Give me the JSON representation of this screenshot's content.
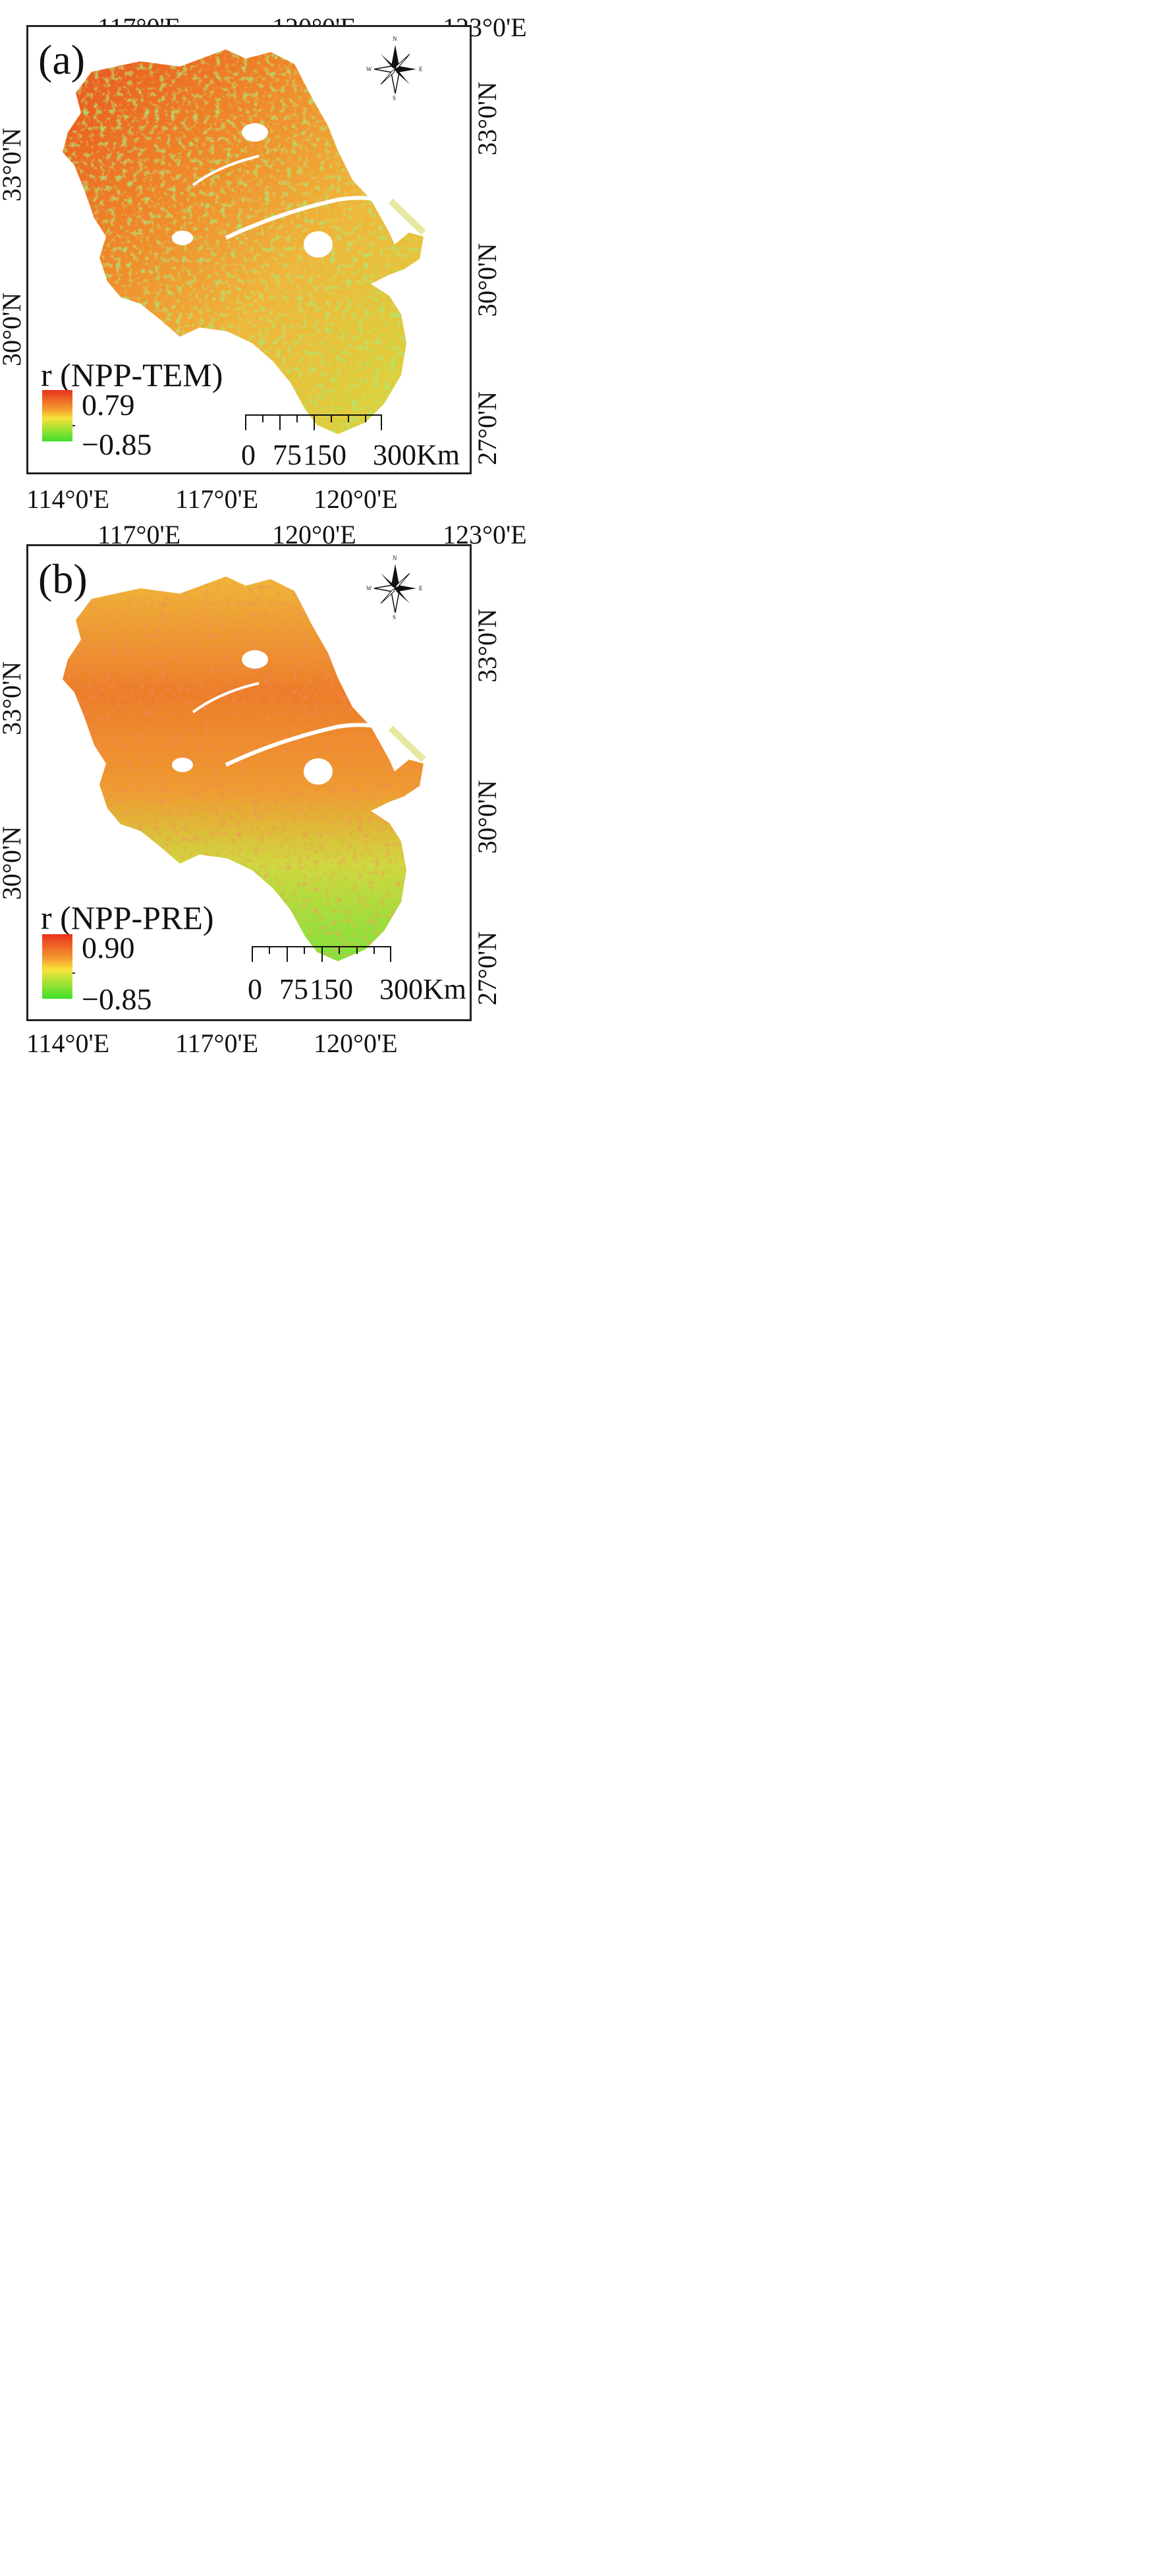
{
  "maps": [
    {
      "panel_label": "(a)",
      "legend_title": "r (NPP-TEM)",
      "legend_max": "0.79",
      "legend_min": "−0.85",
      "top_ticks": [
        "117°0'E",
        "120°0'E",
        "123°0'E"
      ],
      "bottom_ticks": [
        "114°0'E",
        "117°0'E",
        "120°0'E"
      ],
      "left_ticks": [
        "33°0'N",
        "30°0'N"
      ],
      "right_ticks": [
        "33°0'N",
        "30°0'N",
        "27°0'N"
      ]
    },
    {
      "panel_label": "(b)",
      "legend_title": "r (NPP-PRE)",
      "legend_max": "0.90",
      "legend_min": "−0.85",
      "top_ticks": [
        "117°0'E",
        "120°0'E",
        "123°0'E"
      ],
      "bottom_ticks": [
        "114°0'E",
        "117°0'E",
        "120°0'E"
      ],
      "left_ticks": [
        "33°0'N",
        "30°0'N"
      ],
      "right_ticks": [
        "33°0'N",
        "30°0'N",
        "27°0'N"
      ]
    }
  ],
  "scale_bar": {
    "labels": [
      "0",
      "75",
      "150",
      "300"
    ],
    "unit": "Km"
  },
  "compass": {
    "n": "N",
    "s": "S",
    "e": "E",
    "w": "W"
  },
  "colors": {
    "high": "#e8321e",
    "mid": "#f7e43a",
    "low": "#3ee02c",
    "frame": "#222222"
  }
}
